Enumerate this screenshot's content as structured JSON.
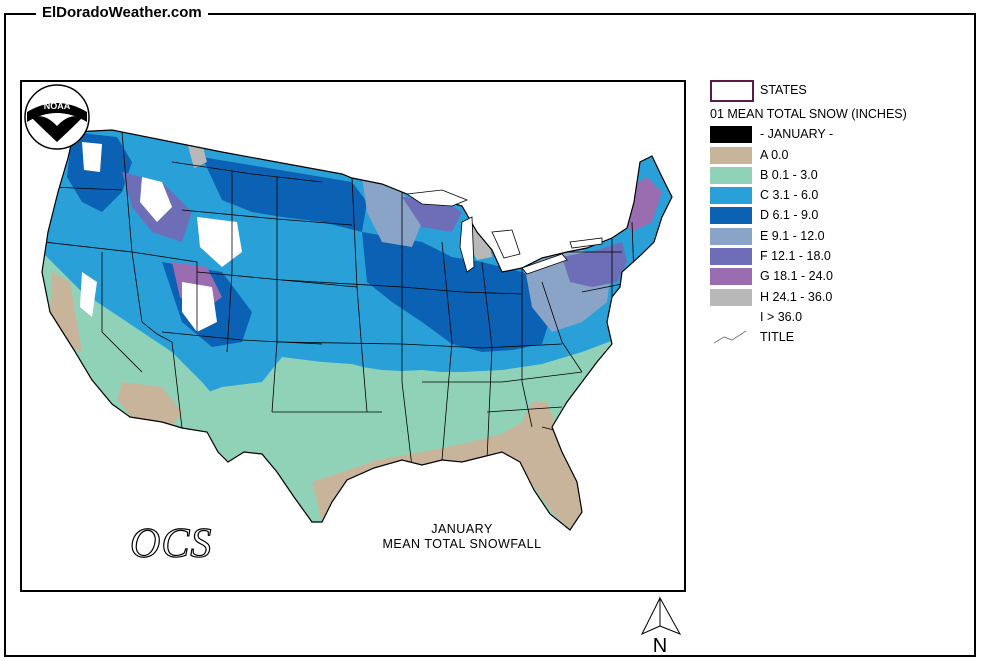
{
  "site_title": "ElDoradoWeather.com",
  "legend": {
    "states_label": "STATES",
    "layer_title": "01 MEAN TOTAL SNOW (INCHES)",
    "classes": [
      {
        "label": "- JANUARY -",
        "color": "#000000"
      },
      {
        "label": "A 0.0",
        "color": "#c8b49a"
      },
      {
        "label": "B 0.1 - 3.0",
        "color": "#8fd2b8"
      },
      {
        "label": "C 3.1 - 6.0",
        "color": "#2aa0d8"
      },
      {
        "label": "D 6.1 - 9.0",
        "color": "#0b62b4"
      },
      {
        "label": "E 9.1 - 12.0",
        "color": "#8aa4c8"
      },
      {
        "label": "F 12.1 - 18.0",
        "color": "#6e6eb8"
      },
      {
        "label": "G 18.1 - 24.0",
        "color": "#9a6cb0"
      },
      {
        "label": "H 24.1 - 36.0",
        "color": "#b8b8b8"
      },
      {
        "label": "I > 36.0",
        "color": "#ffffff"
      }
    ],
    "title_label": "TITLE"
  },
  "map": {
    "caption_line1": "JANUARY",
    "caption_line2": "MEAN TOTAL SNOWFALL",
    "logo_text": "NOAA",
    "agency_text": "OCS"
  },
  "north_label": "N"
}
